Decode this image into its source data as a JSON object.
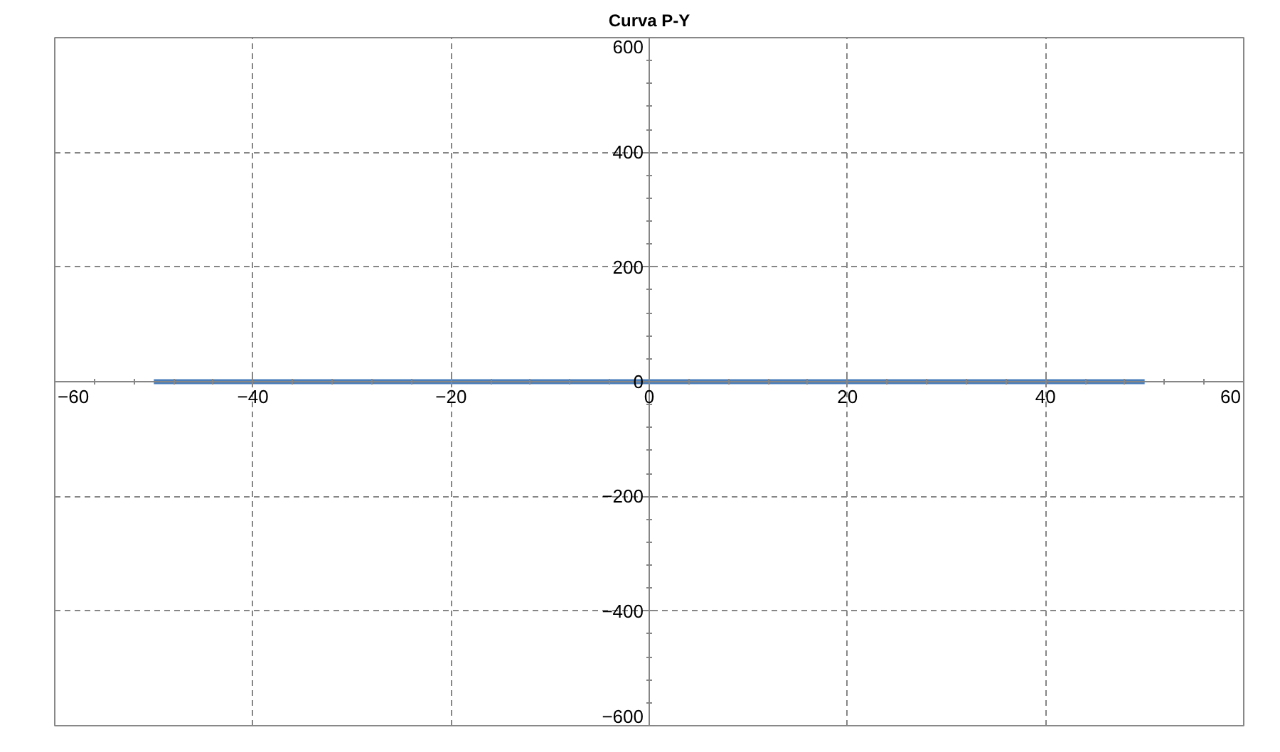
{
  "chart_data": {
    "type": "line",
    "title": "Curva P-Y",
    "x": [
      -50,
      50
    ],
    "series": [
      {
        "color": "#4a7ebb",
        "values": [
          0,
          0
        ]
      }
    ],
    "xlim": [
      -60,
      60
    ],
    "xticks": [
      -60,
      -40,
      -20,
      0,
      20,
      40,
      60
    ],
    "ylim": [
      -600,
      600
    ],
    "yticks": [
      -600,
      -400,
      -200,
      0,
      200,
      400,
      600
    ],
    "grid": true,
    "marker": "none",
    "line_style": "solid"
  }
}
